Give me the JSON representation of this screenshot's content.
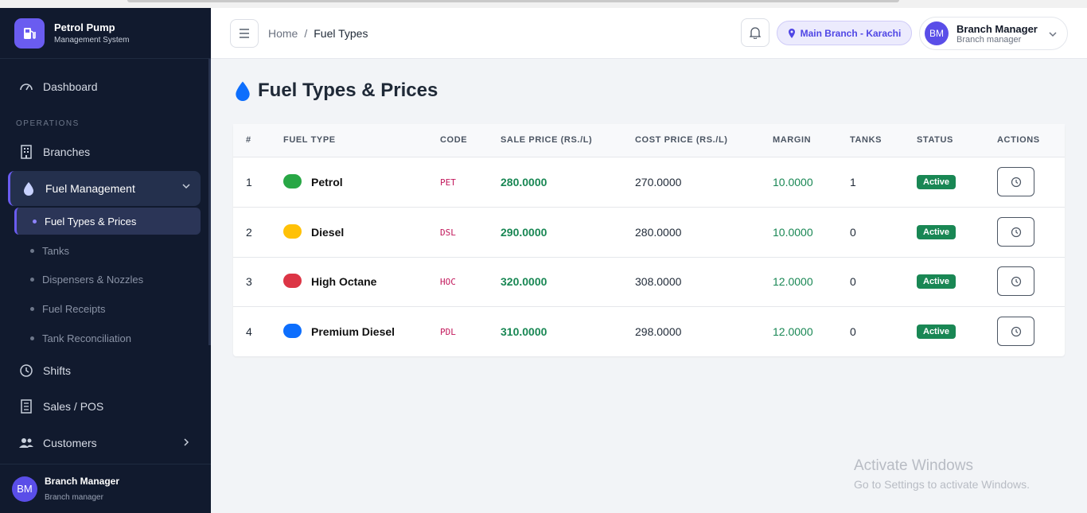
{
  "brand": {
    "title": "Petrol Pump",
    "subtitle": "Management System"
  },
  "sidebar": {
    "dashboard": "Dashboard",
    "section_operations": "OPERATIONS",
    "branches": "Branches",
    "fuel_management": "Fuel Management",
    "sub_items": [
      "Fuel Types & Prices",
      "Tanks",
      "Dispensers & Nozzles",
      "Fuel Receipts",
      "Tank Reconciliation"
    ],
    "shifts": "Shifts",
    "sales": "Sales / POS",
    "customers": "Customers",
    "footer_name": "Branch Manager",
    "footer_role": "Branch manager",
    "footer_initials": "BM"
  },
  "topbar": {
    "breadcrumb_home": "Home",
    "breadcrumb_sep": "/",
    "breadcrumb_current": "Fuel Types",
    "branch": "Main Branch - Karachi",
    "user_name": "Branch Manager",
    "user_role": "Branch manager",
    "user_initials": "BM"
  },
  "page": {
    "title": "Fuel Types & Prices"
  },
  "table": {
    "headers": [
      "#",
      "FUEL TYPE",
      "CODE",
      "SALE PRICE (RS./L)",
      "COST PRICE (RS./L)",
      "MARGIN",
      "TANKS",
      "STATUS",
      "ACTIONS"
    ],
    "rows": [
      {
        "num": "1",
        "name": "Petrol",
        "color": "#28a745",
        "code": "PET",
        "sale": "280.0000",
        "cost": "270.0000",
        "margin": "10.0000",
        "tanks": "1",
        "status": "Active"
      },
      {
        "num": "2",
        "name": "Diesel",
        "color": "#ffc107",
        "code": "DSL",
        "sale": "290.0000",
        "cost": "280.0000",
        "margin": "10.0000",
        "tanks": "0",
        "status": "Active"
      },
      {
        "num": "3",
        "name": "High Octane",
        "color": "#dc3545",
        "code": "HOC",
        "sale": "320.0000",
        "cost": "308.0000",
        "margin": "12.0000",
        "tanks": "0",
        "status": "Active"
      },
      {
        "num": "4",
        "name": "Premium Diesel",
        "color": "#0d6efd",
        "code": "PDL",
        "sale": "310.0000",
        "cost": "298.0000",
        "margin": "12.0000",
        "tanks": "0",
        "status": "Active"
      }
    ]
  },
  "watermark": {
    "line1": "Activate Windows",
    "line2": "Go to Settings to activate Windows."
  },
  "colors": {
    "accent": "#6a5cf0",
    "sidebar_bg": "#111a2e",
    "success": "#198754"
  }
}
